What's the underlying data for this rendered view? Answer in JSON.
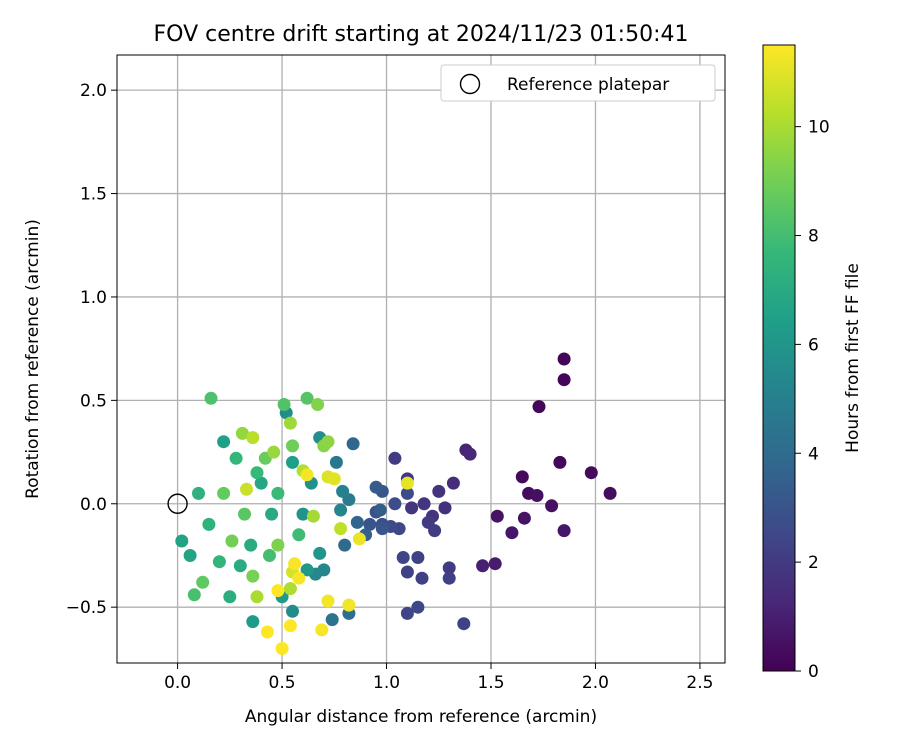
{
  "colors": {
    "viridis": [
      "#440154",
      "#482878",
      "#3e4989",
      "#31688e",
      "#26828e",
      "#1f9e89",
      "#35b779",
      "#6ece58",
      "#b5de2b",
      "#fde725"
    ],
    "grid": "#b0b0b0",
    "axes": "#000000"
  },
  "chart_data": {
    "type": "scatter",
    "title": "FOV centre drift starting at 2024/11/23 01:50:41",
    "xlabel": "Angular distance from reference (arcmin)",
    "ylabel": "Rotation from reference (arcmin)",
    "xlim": [
      -0.29,
      2.62
    ],
    "ylim": [
      -0.77,
      2.17
    ],
    "x_ticks": [
      0.0,
      0.5,
      1.0,
      1.5,
      2.0,
      2.5
    ],
    "x_tick_labels": [
      "0.0",
      "0.5",
      "1.0",
      "1.5",
      "2.0",
      "2.5"
    ],
    "y_ticks": [
      -0.5,
      0.0,
      0.5,
      1.0,
      1.5,
      2.0
    ],
    "y_tick_labels": [
      "−0.5",
      "0.0",
      "0.5",
      "1.0",
      "1.5",
      "2.0"
    ],
    "grid": true,
    "legend": {
      "placement": "top-right",
      "entries": [
        "Reference platepar"
      ]
    },
    "reference_point": {
      "x": 0.0,
      "y": 0.0,
      "label": "Reference platepar"
    },
    "colorbar": {
      "label": "Hours from first FF file",
      "range": [
        0,
        11.5
      ],
      "ticks": [
        0,
        2,
        4,
        6,
        8,
        10
      ],
      "tick_labels": [
        "0",
        "2",
        "4",
        "6",
        "8",
        "10"
      ],
      "colormap": "viridis"
    },
    "points": [
      {
        "x": 1.85,
        "y": 0.7,
        "h": 0.1
      },
      {
        "x": 1.85,
        "y": 0.6,
        "h": 0.1
      },
      {
        "x": 1.73,
        "y": 0.47,
        "h": 0.2
      },
      {
        "x": 1.83,
        "y": 0.2,
        "h": 0.2
      },
      {
        "x": 1.65,
        "y": 0.13,
        "h": 0.3
      },
      {
        "x": 1.98,
        "y": 0.15,
        "h": 0.3
      },
      {
        "x": 2.07,
        "y": 0.05,
        "h": 0.4
      },
      {
        "x": 1.68,
        "y": 0.05,
        "h": 0.4
      },
      {
        "x": 1.72,
        "y": 0.04,
        "h": 0.5
      },
      {
        "x": 1.79,
        "y": -0.01,
        "h": 0.5
      },
      {
        "x": 1.53,
        "y": -0.06,
        "h": 0.6
      },
      {
        "x": 1.66,
        "y": -0.07,
        "h": 0.6
      },
      {
        "x": 1.6,
        "y": -0.14,
        "h": 0.7
      },
      {
        "x": 1.85,
        "y": -0.13,
        "h": 0.7
      },
      {
        "x": 1.52,
        "y": -0.29,
        "h": 0.9
      },
      {
        "x": 1.46,
        "y": -0.3,
        "h": 1.0
      },
      {
        "x": 1.38,
        "y": 0.26,
        "h": 1.2
      },
      {
        "x": 1.4,
        "y": 0.24,
        "h": 1.3
      },
      {
        "x": 1.32,
        "y": 0.1,
        "h": 1.5
      },
      {
        "x": 1.28,
        "y": -0.02,
        "h": 1.6
      },
      {
        "x": 1.22,
        "y": -0.06,
        "h": 1.7
      },
      {
        "x": 1.25,
        "y": 0.06,
        "h": 1.7
      },
      {
        "x": 1.18,
        "y": 0.0,
        "h": 1.8
      },
      {
        "x": 1.12,
        "y": -0.02,
        "h": 1.8
      },
      {
        "x": 1.1,
        "y": 0.12,
        "h": 1.9
      },
      {
        "x": 1.04,
        "y": 0.22,
        "h": 2.0
      },
      {
        "x": 1.2,
        "y": -0.09,
        "h": 2.0
      },
      {
        "x": 1.23,
        "y": -0.13,
        "h": 2.1
      },
      {
        "x": 1.3,
        "y": -0.31,
        "h": 2.1
      },
      {
        "x": 1.3,
        "y": -0.36,
        "h": 2.2
      },
      {
        "x": 1.17,
        "y": -0.36,
        "h": 2.2
      },
      {
        "x": 1.15,
        "y": -0.26,
        "h": 2.3
      },
      {
        "x": 1.1,
        "y": -0.33,
        "h": 2.3
      },
      {
        "x": 1.08,
        "y": -0.26,
        "h": 2.4
      },
      {
        "x": 1.1,
        "y": -0.53,
        "h": 2.4
      },
      {
        "x": 1.15,
        "y": -0.5,
        "h": 2.5
      },
      {
        "x": 1.37,
        "y": -0.58,
        "h": 2.3
      },
      {
        "x": 1.06,
        "y": -0.12,
        "h": 2.5
      },
      {
        "x": 1.02,
        "y": -0.11,
        "h": 2.6
      },
      {
        "x": 1.1,
        "y": 0.05,
        "h": 2.6
      },
      {
        "x": 1.04,
        "y": 0.0,
        "h": 2.7
      },
      {
        "x": 0.98,
        "y": -0.1,
        "h": 2.8
      },
      {
        "x": 0.95,
        "y": -0.04,
        "h": 2.9
      },
      {
        "x": 0.92,
        "y": -0.1,
        "h": 3.0
      },
      {
        "x": 0.98,
        "y": -0.12,
        "h": 3.1
      },
      {
        "x": 0.98,
        "y": 0.06,
        "h": 3.1
      },
      {
        "x": 0.95,
        "y": 0.08,
        "h": 3.3
      },
      {
        "x": 0.97,
        "y": -0.03,
        "h": 3.4
      },
      {
        "x": 0.9,
        "y": -0.15,
        "h": 3.5
      },
      {
        "x": 0.86,
        "y": -0.09,
        "h": 3.7
      },
      {
        "x": 0.84,
        "y": 0.29,
        "h": 3.8
      },
      {
        "x": 0.8,
        "y": -0.2,
        "h": 4.0
      },
      {
        "x": 0.82,
        "y": -0.53,
        "h": 4.2
      },
      {
        "x": 0.74,
        "y": -0.56,
        "h": 4.4
      },
      {
        "x": 0.76,
        "y": 0.2,
        "h": 4.6
      },
      {
        "x": 0.82,
        "y": 0.02,
        "h": 4.8
      },
      {
        "x": 0.79,
        "y": 0.06,
        "h": 5.0
      },
      {
        "x": 0.78,
        "y": -0.03,
        "h": 5.2
      },
      {
        "x": 0.7,
        "y": -0.32,
        "h": 5.3
      },
      {
        "x": 0.66,
        "y": -0.34,
        "h": 5.4
      },
      {
        "x": 0.55,
        "y": -0.52,
        "h": 5.5
      },
      {
        "x": 0.52,
        "y": 0.44,
        "h": 5.6
      },
      {
        "x": 0.68,
        "y": 0.32,
        "h": 5.7
      },
      {
        "x": 0.64,
        "y": 0.1,
        "h": 5.8
      },
      {
        "x": 0.6,
        "y": -0.05,
        "h": 5.9
      },
      {
        "x": 0.68,
        "y": -0.24,
        "h": 6.0
      },
      {
        "x": 0.62,
        "y": -0.32,
        "h": 6.1
      },
      {
        "x": 0.5,
        "y": -0.45,
        "h": 6.2
      },
      {
        "x": 0.36,
        "y": -0.57,
        "h": 6.3
      },
      {
        "x": 0.55,
        "y": 0.2,
        "h": 6.4
      },
      {
        "x": 0.22,
        "y": 0.3,
        "h": 6.5
      },
      {
        "x": 0.02,
        "y": -0.18,
        "h": 6.6
      },
      {
        "x": 0.06,
        "y": -0.25,
        "h": 6.7
      },
      {
        "x": 0.4,
        "y": 0.1,
        "h": 6.8
      },
      {
        "x": 0.45,
        "y": -0.05,
        "h": 6.9
      },
      {
        "x": 0.35,
        "y": -0.2,
        "h": 7.0
      },
      {
        "x": 0.3,
        "y": -0.3,
        "h": 7.1
      },
      {
        "x": 0.25,
        "y": -0.45,
        "h": 7.2
      },
      {
        "x": 0.1,
        "y": 0.05,
        "h": 7.3
      },
      {
        "x": 0.15,
        "y": -0.1,
        "h": 7.4
      },
      {
        "x": 0.2,
        "y": -0.28,
        "h": 7.5
      },
      {
        "x": 0.28,
        "y": 0.22,
        "h": 7.6
      },
      {
        "x": 0.38,
        "y": 0.15,
        "h": 7.7
      },
      {
        "x": 0.48,
        "y": 0.05,
        "h": 7.8
      },
      {
        "x": 0.58,
        "y": -0.15,
        "h": 7.9
      },
      {
        "x": 0.44,
        "y": -0.25,
        "h": 8.0
      },
      {
        "x": 0.08,
        "y": -0.44,
        "h": 8.1
      },
      {
        "x": 0.16,
        "y": 0.51,
        "h": 8.2
      },
      {
        "x": 0.51,
        "y": 0.48,
        "h": 8.3
      },
      {
        "x": 0.62,
        "y": 0.51,
        "h": 8.4
      },
      {
        "x": 0.32,
        "y": -0.05,
        "h": 8.5
      },
      {
        "x": 0.12,
        "y": -0.38,
        "h": 8.6
      },
      {
        "x": 0.22,
        "y": 0.05,
        "h": 8.7
      },
      {
        "x": 0.42,
        "y": 0.22,
        "h": 8.8
      },
      {
        "x": 0.55,
        "y": 0.28,
        "h": 8.9
      },
      {
        "x": 0.26,
        "y": -0.18,
        "h": 9.0
      },
      {
        "x": 0.36,
        "y": -0.35,
        "h": 9.1
      },
      {
        "x": 0.48,
        "y": -0.2,
        "h": 9.2
      },
      {
        "x": 0.67,
        "y": 0.48,
        "h": 9.3
      },
      {
        "x": 0.7,
        "y": 0.28,
        "h": 9.4
      },
      {
        "x": 0.72,
        "y": 0.3,
        "h": 9.5
      },
      {
        "x": 0.31,
        "y": 0.34,
        "h": 9.6
      },
      {
        "x": 0.46,
        "y": 0.25,
        "h": 9.7
      },
      {
        "x": 0.54,
        "y": 0.39,
        "h": 9.8
      },
      {
        "x": 0.65,
        "y": -0.06,
        "h": 9.9
      },
      {
        "x": 0.38,
        "y": -0.45,
        "h": 10.0
      },
      {
        "x": 0.54,
        "y": -0.41,
        "h": 10.1
      },
      {
        "x": 0.6,
        "y": 0.16,
        "h": 10.2
      },
      {
        "x": 0.36,
        "y": 0.32,
        "h": 10.3
      },
      {
        "x": 0.78,
        "y": -0.12,
        "h": 10.4
      },
      {
        "x": 0.33,
        "y": 0.07,
        "h": 10.6
      },
      {
        "x": 0.55,
        "y": -0.33,
        "h": 10.8
      },
      {
        "x": 0.72,
        "y": 0.13,
        "h": 10.9
      },
      {
        "x": 0.75,
        "y": 0.12,
        "h": 11.0
      },
      {
        "x": 1.1,
        "y": 0.1,
        "h": 11.1
      },
      {
        "x": 0.87,
        "y": -0.17,
        "h": 11.2
      },
      {
        "x": 0.82,
        "y": -0.49,
        "h": 11.3
      },
      {
        "x": 0.72,
        "y": -0.47,
        "h": 11.3
      },
      {
        "x": 0.58,
        "y": -0.36,
        "h": 11.4
      },
      {
        "x": 0.56,
        "y": -0.29,
        "h": 11.4
      },
      {
        "x": 0.48,
        "y": -0.42,
        "h": 11.5
      },
      {
        "x": 0.43,
        "y": -0.62,
        "h": 11.5
      },
      {
        "x": 0.5,
        "y": -0.7,
        "h": 11.5
      },
      {
        "x": 0.69,
        "y": -0.61,
        "h": 11.4
      },
      {
        "x": 0.54,
        "y": -0.59,
        "h": 11.5
      },
      {
        "x": 0.62,
        "y": 0.14,
        "h": 11.3
      }
    ]
  }
}
